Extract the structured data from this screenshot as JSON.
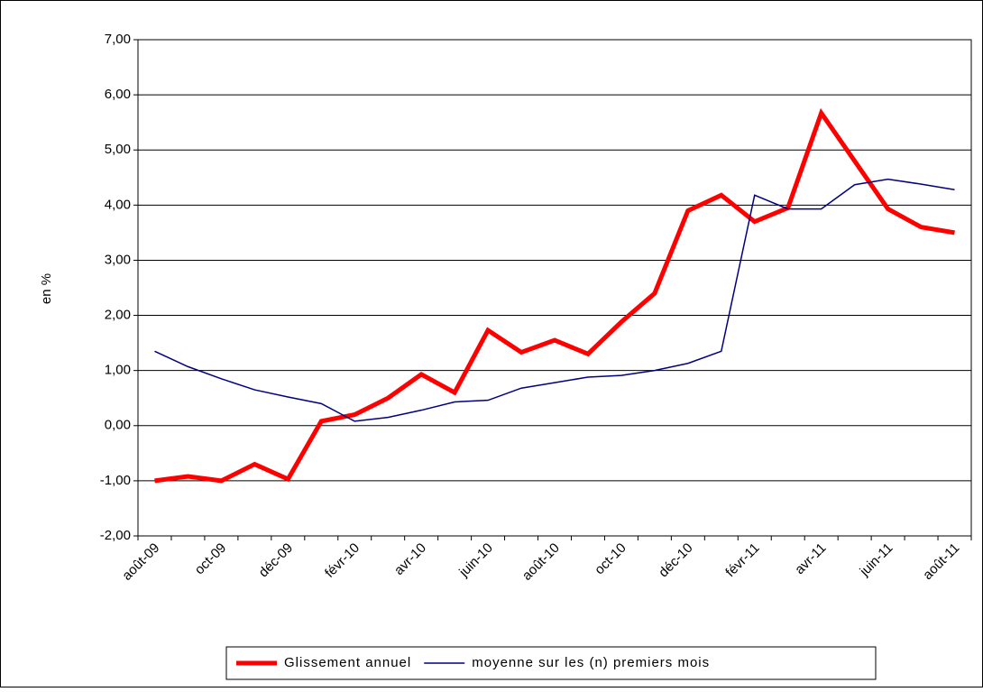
{
  "chart_data": {
    "type": "line",
    "y_label": "en %",
    "categories": [
      "août-09",
      null,
      "oct-09",
      null,
      "déc-09",
      null,
      "févr-10",
      null,
      "avr-10",
      null,
      "juin-10",
      null,
      "août-10",
      null,
      "oct-10",
      null,
      "déc-10",
      null,
      "févr-11",
      null,
      "avr-11",
      null,
      "juin-11",
      null,
      "août-11"
    ],
    "series": [
      {
        "name": "Glissement annuel",
        "color": "#ff0000",
        "values": [
          -1.0,
          -0.92,
          -1.0,
          -0.7,
          -0.97,
          0.08,
          0.2,
          0.5,
          0.93,
          0.6,
          1.73,
          1.33,
          1.55,
          1.3,
          1.88,
          2.4,
          3.9,
          4.18,
          3.7,
          3.95,
          5.67,
          4.8,
          3.93,
          3.6,
          3.5
        ]
      },
      {
        "name": "moyenne sur les (n) premiers mois",
        "color": "#000080",
        "values": [
          1.35,
          1.07,
          0.85,
          0.65,
          0.52,
          0.4,
          0.08,
          0.15,
          0.28,
          0.43,
          0.46,
          0.68,
          0.78,
          0.88,
          0.91,
          1.0,
          1.13,
          1.35,
          4.18,
          3.93,
          3.93,
          4.37,
          4.47,
          4.38,
          4.28
        ]
      }
    ],
    "ylim": [
      -2,
      7
    ],
    "yticks": [
      {
        "value": -2,
        "label": "-2,00"
      },
      {
        "value": -1,
        "label": "-1,00"
      },
      {
        "value": 0,
        "label": "0,00"
      },
      {
        "value": 1,
        "label": "1,00"
      },
      {
        "value": 2,
        "label": "2,00"
      },
      {
        "value": 3,
        "label": "3,00"
      },
      {
        "value": 4,
        "label": "4,00"
      },
      {
        "value": 5,
        "label": "5,00"
      },
      {
        "value": 6,
        "label": "6,00"
      },
      {
        "value": 7,
        "label": "7,00"
      }
    ],
    "grid": true,
    "legend": "bottom"
  }
}
